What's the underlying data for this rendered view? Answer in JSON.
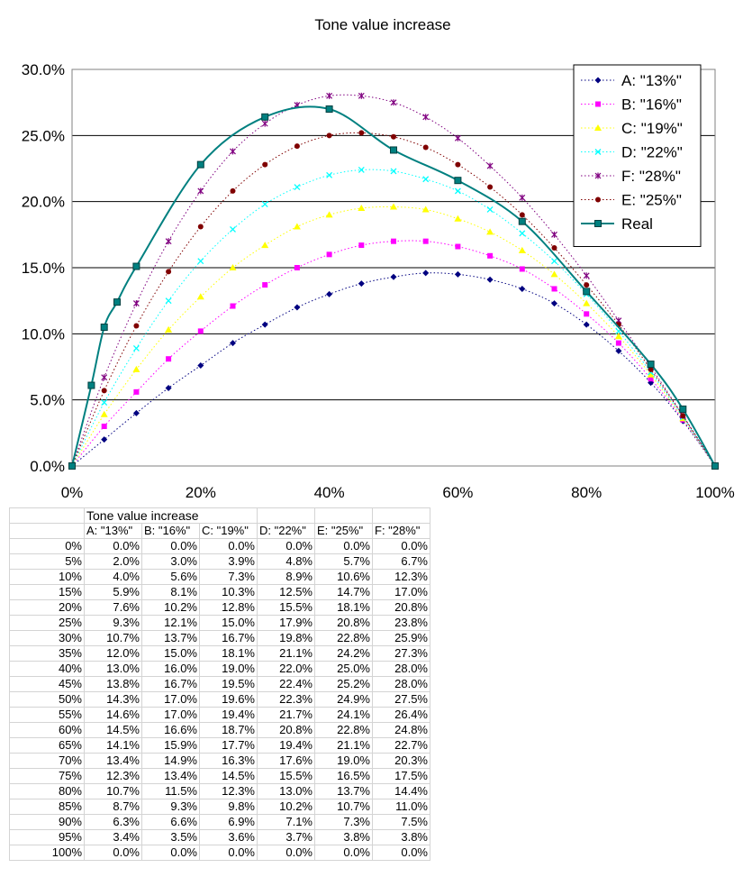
{
  "chart_data": {
    "type": "line",
    "title": "Tone value increase",
    "xlabel": "",
    "ylabel": "",
    "xlim": [
      0,
      100
    ],
    "ylim": [
      0,
      30
    ],
    "x_ticks": [
      "0%",
      "20%",
      "40%",
      "60%",
      "80%",
      "100%"
    ],
    "y_ticks": [
      "0.0%",
      "5.0%",
      "10.0%",
      "15.0%",
      "20.0%",
      "25.0%",
      "30.0%"
    ],
    "grid": "horizontal",
    "legend": "top-right",
    "series": [
      {
        "name": "A: \"13%\"",
        "color": "#000080",
        "marker": "diamond",
        "style": "dotted",
        "x": [
          0,
          5,
          10,
          15,
          20,
          25,
          30,
          35,
          40,
          45,
          50,
          55,
          60,
          65,
          70,
          75,
          80,
          85,
          90,
          95,
          100
        ],
        "values": [
          0.0,
          2.0,
          4.0,
          5.9,
          7.6,
          9.3,
          10.7,
          12.0,
          13.0,
          13.8,
          14.3,
          14.6,
          14.5,
          14.1,
          13.4,
          12.3,
          10.7,
          8.7,
          6.3,
          3.4,
          0.0
        ]
      },
      {
        "name": "B: \"16%\"",
        "color": "#ff00ff",
        "marker": "square",
        "style": "dotted",
        "x": [
          0,
          5,
          10,
          15,
          20,
          25,
          30,
          35,
          40,
          45,
          50,
          55,
          60,
          65,
          70,
          75,
          80,
          85,
          90,
          95,
          100
        ],
        "values": [
          0.0,
          3.0,
          5.6,
          8.1,
          10.2,
          12.1,
          13.7,
          15.0,
          16.0,
          16.7,
          17.0,
          17.0,
          16.6,
          15.9,
          14.9,
          13.4,
          11.5,
          9.3,
          6.6,
          3.5,
          0.0
        ]
      },
      {
        "name": "C: \"19%\"",
        "color": "#ffff00",
        "marker": "triangle",
        "style": "dotted",
        "x": [
          0,
          5,
          10,
          15,
          20,
          25,
          30,
          35,
          40,
          45,
          50,
          55,
          60,
          65,
          70,
          75,
          80,
          85,
          90,
          95,
          100
        ],
        "values": [
          0.0,
          3.9,
          7.3,
          10.3,
          12.8,
          15.0,
          16.7,
          18.1,
          19.0,
          19.5,
          19.6,
          19.4,
          18.7,
          17.7,
          16.3,
          14.5,
          12.3,
          9.8,
          6.9,
          3.6,
          0.0
        ]
      },
      {
        "name": "D: \"22%\"",
        "color": "#00ffff",
        "marker": "x",
        "style": "dotted",
        "x": [
          0,
          5,
          10,
          15,
          20,
          25,
          30,
          35,
          40,
          45,
          50,
          55,
          60,
          65,
          70,
          75,
          80,
          85,
          90,
          95,
          100
        ],
        "values": [
          0.0,
          4.8,
          8.9,
          12.5,
          15.5,
          17.9,
          19.8,
          21.1,
          22.0,
          22.4,
          22.3,
          21.7,
          20.8,
          19.4,
          17.6,
          15.5,
          13.0,
          10.2,
          7.1,
          3.7,
          0.0
        ]
      },
      {
        "name": "F: \"28%\"",
        "color": "#800080",
        "marker": "star",
        "style": "dotted",
        "x": [
          0,
          5,
          10,
          15,
          20,
          25,
          30,
          35,
          40,
          45,
          50,
          55,
          60,
          65,
          70,
          75,
          80,
          85,
          90,
          95,
          100
        ],
        "values": [
          0.0,
          6.7,
          12.3,
          17.0,
          20.8,
          23.8,
          25.9,
          27.3,
          28.0,
          28.0,
          27.5,
          26.4,
          24.8,
          22.7,
          20.3,
          17.5,
          14.4,
          11.0,
          7.5,
          3.8,
          0.0
        ]
      },
      {
        "name": "E: \"25%\"",
        "color": "#800000",
        "marker": "circle",
        "style": "dotted",
        "x": [
          0,
          5,
          10,
          15,
          20,
          25,
          30,
          35,
          40,
          45,
          50,
          55,
          60,
          65,
          70,
          75,
          80,
          85,
          90,
          95,
          100
        ],
        "values": [
          0.0,
          5.7,
          10.6,
          14.7,
          18.1,
          20.8,
          22.8,
          24.2,
          25.0,
          25.2,
          24.9,
          24.1,
          22.8,
          21.1,
          19.0,
          16.5,
          13.7,
          10.7,
          7.3,
          3.8,
          0.0
        ]
      },
      {
        "name": "Real",
        "color": "#008080",
        "marker": "square",
        "style": "solid",
        "x": [
          0,
          3,
          5,
          7,
          10,
          20,
          30,
          40,
          50,
          60,
          70,
          80,
          90,
          95,
          100
        ],
        "values": [
          0.0,
          6.1,
          10.5,
          12.4,
          15.1,
          22.8,
          26.4,
          27.0,
          23.9,
          21.6,
          18.5,
          13.2,
          7.7,
          4.3,
          0.0
        ]
      }
    ]
  },
  "table": {
    "title": "Tone value increase",
    "headers": [
      "A: \"13%\"",
      "B: \"16%\"",
      "C: \"19%\"",
      "D: \"22%\"",
      "E: \"25%\"",
      "F: \"28%\""
    ],
    "rows": [
      [
        "0%",
        "0.0%",
        "0.0%",
        "0.0%",
        "0.0%",
        "0.0%",
        "0.0%"
      ],
      [
        "5%",
        "2.0%",
        "3.0%",
        "3.9%",
        "4.8%",
        "5.7%",
        "6.7%"
      ],
      [
        "10%",
        "4.0%",
        "5.6%",
        "7.3%",
        "8.9%",
        "10.6%",
        "12.3%"
      ],
      [
        "15%",
        "5.9%",
        "8.1%",
        "10.3%",
        "12.5%",
        "14.7%",
        "17.0%"
      ],
      [
        "20%",
        "7.6%",
        "10.2%",
        "12.8%",
        "15.5%",
        "18.1%",
        "20.8%"
      ],
      [
        "25%",
        "9.3%",
        "12.1%",
        "15.0%",
        "17.9%",
        "20.8%",
        "23.8%"
      ],
      [
        "30%",
        "10.7%",
        "13.7%",
        "16.7%",
        "19.8%",
        "22.8%",
        "25.9%"
      ],
      [
        "35%",
        "12.0%",
        "15.0%",
        "18.1%",
        "21.1%",
        "24.2%",
        "27.3%"
      ],
      [
        "40%",
        "13.0%",
        "16.0%",
        "19.0%",
        "22.0%",
        "25.0%",
        "28.0%"
      ],
      [
        "45%",
        "13.8%",
        "16.7%",
        "19.5%",
        "22.4%",
        "25.2%",
        "28.0%"
      ],
      [
        "50%",
        "14.3%",
        "17.0%",
        "19.6%",
        "22.3%",
        "24.9%",
        "27.5%"
      ],
      [
        "55%",
        "14.6%",
        "17.0%",
        "19.4%",
        "21.7%",
        "24.1%",
        "26.4%"
      ],
      [
        "60%",
        "14.5%",
        "16.6%",
        "18.7%",
        "20.8%",
        "22.8%",
        "24.8%"
      ],
      [
        "65%",
        "14.1%",
        "15.9%",
        "17.7%",
        "19.4%",
        "21.1%",
        "22.7%"
      ],
      [
        "70%",
        "13.4%",
        "14.9%",
        "16.3%",
        "17.6%",
        "19.0%",
        "20.3%"
      ],
      [
        "75%",
        "12.3%",
        "13.4%",
        "14.5%",
        "15.5%",
        "16.5%",
        "17.5%"
      ],
      [
        "80%",
        "10.7%",
        "11.5%",
        "12.3%",
        "13.0%",
        "13.7%",
        "14.4%"
      ],
      [
        "85%",
        "8.7%",
        "9.3%",
        "9.8%",
        "10.2%",
        "10.7%",
        "11.0%"
      ],
      [
        "90%",
        "6.3%",
        "6.6%",
        "6.9%",
        "7.1%",
        "7.3%",
        "7.5%"
      ],
      [
        "95%",
        "3.4%",
        "3.5%",
        "3.6%",
        "3.7%",
        "3.8%",
        "3.8%"
      ],
      [
        "100%",
        "0.0%",
        "0.0%",
        "0.0%",
        "0.0%",
        "0.0%",
        "0.0%"
      ]
    ]
  }
}
